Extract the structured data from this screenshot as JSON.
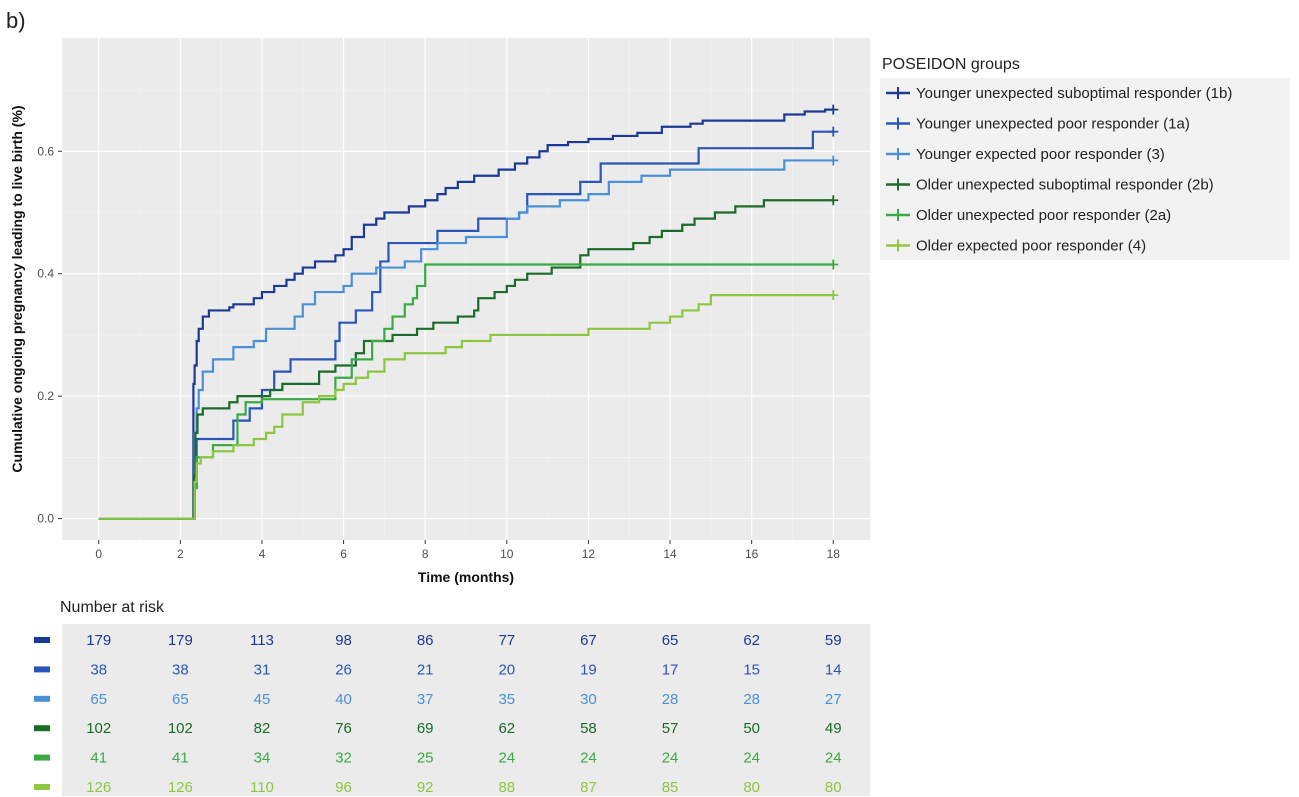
{
  "panel_label": "b)",
  "chart_data": {
    "type": "line",
    "title": "",
    "xlabel": "Time (months)",
    "ylabel": "Cumulative ongoing pregnancy leading to live birth (%)",
    "xlim": [
      -0.9,
      18.9
    ],
    "ylim": [
      -0.035,
      0.785
    ],
    "x_ticks": [
      0,
      2,
      4,
      6,
      8,
      10,
      12,
      14,
      16,
      18
    ],
    "y_ticks": [
      0.0,
      0.2,
      0.4,
      0.6
    ],
    "y_tick_labels": [
      "0.0",
      "0.2",
      "0.4",
      "0.6"
    ],
    "grid": true,
    "legend_title": "POSEIDON groups",
    "legend_position": "right",
    "series": [
      {
        "name": "Younger unexpected suboptimal responder (1b)",
        "color": "#1c3a94",
        "points": [
          [
            0,
            0
          ],
          [
            2.3,
            0
          ],
          [
            2.32,
            0.22
          ],
          [
            2.35,
            0.25
          ],
          [
            2.4,
            0.29
          ],
          [
            2.45,
            0.31
          ],
          [
            2.55,
            0.33
          ],
          [
            2.7,
            0.34
          ],
          [
            3.2,
            0.345
          ],
          [
            3.3,
            0.35
          ],
          [
            3.8,
            0.36
          ],
          [
            4,
            0.37
          ],
          [
            4.3,
            0.38
          ],
          [
            4.6,
            0.39
          ],
          [
            4.8,
            0.4
          ],
          [
            5.0,
            0.41
          ],
          [
            5.3,
            0.42
          ],
          [
            5.8,
            0.43
          ],
          [
            6.0,
            0.44
          ],
          [
            6.2,
            0.46
          ],
          [
            6.5,
            0.48
          ],
          [
            6.8,
            0.49
          ],
          [
            7.0,
            0.5
          ],
          [
            7.6,
            0.51
          ],
          [
            8.0,
            0.52
          ],
          [
            8.3,
            0.53
          ],
          [
            8.5,
            0.54
          ],
          [
            8.8,
            0.55
          ],
          [
            9.2,
            0.56
          ],
          [
            9.8,
            0.57
          ],
          [
            10.2,
            0.58
          ],
          [
            10.5,
            0.59
          ],
          [
            10.8,
            0.6
          ],
          [
            11.0,
            0.61
          ],
          [
            11.5,
            0.615
          ],
          [
            12.0,
            0.62
          ],
          [
            12.6,
            0.625
          ],
          [
            13.2,
            0.63
          ],
          [
            13.8,
            0.64
          ],
          [
            14.5,
            0.645
          ],
          [
            14.8,
            0.65
          ],
          [
            16.8,
            0.66
          ],
          [
            17.3,
            0.665
          ],
          [
            17.8,
            0.668
          ],
          [
            18,
            0.668
          ]
        ]
      },
      {
        "name": "Younger unexpected poor responder (1a)",
        "color": "#2a56b8",
        "points": [
          [
            0,
            0
          ],
          [
            2.3,
            0
          ],
          [
            2.35,
            0.05
          ],
          [
            2.4,
            0.13
          ],
          [
            3.3,
            0.16
          ],
          [
            3.7,
            0.18
          ],
          [
            4.0,
            0.21
          ],
          [
            4.3,
            0.24
          ],
          [
            4.7,
            0.26
          ],
          [
            5.8,
            0.29
          ],
          [
            5.9,
            0.32
          ],
          [
            6.3,
            0.34
          ],
          [
            6.7,
            0.37
          ],
          [
            6.9,
            0.42
          ],
          [
            7.1,
            0.45
          ],
          [
            8.3,
            0.47
          ],
          [
            8.9,
            0.47
          ],
          [
            9.3,
            0.49
          ],
          [
            10.3,
            0.5
          ],
          [
            10.5,
            0.53
          ],
          [
            11.8,
            0.55
          ],
          [
            12.3,
            0.58
          ],
          [
            14.7,
            0.605
          ],
          [
            15.5,
            0.605
          ],
          [
            17.5,
            0.632
          ],
          [
            18,
            0.632
          ]
        ]
      },
      {
        "name": "Younger expected poor responder (3)",
        "color": "#4a90d6",
        "points": [
          [
            0,
            0
          ],
          [
            2.3,
            0
          ],
          [
            2.35,
            0.14
          ],
          [
            2.4,
            0.18
          ],
          [
            2.45,
            0.21
          ],
          [
            2.55,
            0.24
          ],
          [
            2.8,
            0.26
          ],
          [
            3.3,
            0.28
          ],
          [
            3.8,
            0.29
          ],
          [
            4.1,
            0.31
          ],
          [
            4.8,
            0.33
          ],
          [
            5.0,
            0.35
          ],
          [
            5.3,
            0.37
          ],
          [
            6.0,
            0.38
          ],
          [
            6.2,
            0.4
          ],
          [
            6.8,
            0.41
          ],
          [
            7.5,
            0.42
          ],
          [
            7.9,
            0.44
          ],
          [
            8.3,
            0.45
          ],
          [
            9.0,
            0.46
          ],
          [
            10.0,
            0.49
          ],
          [
            10.3,
            0.5
          ],
          [
            10.5,
            0.51
          ],
          [
            11.3,
            0.52
          ],
          [
            12.0,
            0.53
          ],
          [
            12.5,
            0.55
          ],
          [
            13.3,
            0.56
          ],
          [
            14.0,
            0.57
          ],
          [
            16.8,
            0.585
          ],
          [
            18,
            0.585
          ]
        ]
      },
      {
        "name": "Older unexpected suboptimal responder (2b)",
        "color": "#1b6b2a",
        "points": [
          [
            0,
            0
          ],
          [
            2.3,
            0
          ],
          [
            2.33,
            0.07
          ],
          [
            2.37,
            0.14
          ],
          [
            2.42,
            0.17
          ],
          [
            2.55,
            0.18
          ],
          [
            3.2,
            0.19
          ],
          [
            3.4,
            0.2
          ],
          [
            4.2,
            0.21
          ],
          [
            4.5,
            0.22
          ],
          [
            5.4,
            0.24
          ],
          [
            5.8,
            0.25
          ],
          [
            6.3,
            0.27
          ],
          [
            6.5,
            0.29
          ],
          [
            7.2,
            0.3
          ],
          [
            7.8,
            0.31
          ],
          [
            8.2,
            0.32
          ],
          [
            8.8,
            0.33
          ],
          [
            9.2,
            0.34
          ],
          [
            9.3,
            0.36
          ],
          [
            9.7,
            0.37
          ],
          [
            10.0,
            0.38
          ],
          [
            10.2,
            0.39
          ],
          [
            10.5,
            0.4
          ],
          [
            11.1,
            0.41
          ],
          [
            11.8,
            0.43
          ],
          [
            12.0,
            0.44
          ],
          [
            13.1,
            0.45
          ],
          [
            13.5,
            0.46
          ],
          [
            13.8,
            0.47
          ],
          [
            14.3,
            0.48
          ],
          [
            14.6,
            0.49
          ],
          [
            15.1,
            0.5
          ],
          [
            15.6,
            0.51
          ],
          [
            16.3,
            0.52
          ],
          [
            18,
            0.52
          ]
        ]
      },
      {
        "name": "Older unexpected poor responder (2a)",
        "color": "#3aaa45",
        "points": [
          [
            0,
            0
          ],
          [
            2.3,
            0
          ],
          [
            2.35,
            0.05
          ],
          [
            2.4,
            0.1
          ],
          [
            2.8,
            0.12
          ],
          [
            3.4,
            0.17
          ],
          [
            3.6,
            0.19
          ],
          [
            4.0,
            0.195
          ],
          [
            5.8,
            0.23
          ],
          [
            6.2,
            0.26
          ],
          [
            6.7,
            0.29
          ],
          [
            7.0,
            0.31
          ],
          [
            7.2,
            0.33
          ],
          [
            7.5,
            0.35
          ],
          [
            7.7,
            0.36
          ],
          [
            7.8,
            0.38
          ],
          [
            8.0,
            0.415
          ],
          [
            18,
            0.415
          ]
        ]
      },
      {
        "name": "Older expected poor responder (4)",
        "color": "#8dc63f",
        "points": [
          [
            0,
            0
          ],
          [
            2.3,
            0
          ],
          [
            2.35,
            0.06
          ],
          [
            2.4,
            0.09
          ],
          [
            2.5,
            0.1
          ],
          [
            2.8,
            0.11
          ],
          [
            3.3,
            0.12
          ],
          [
            3.8,
            0.13
          ],
          [
            4.1,
            0.14
          ],
          [
            4.3,
            0.15
          ],
          [
            4.5,
            0.17
          ],
          [
            5.0,
            0.19
          ],
          [
            5.4,
            0.2
          ],
          [
            5.8,
            0.21
          ],
          [
            6.0,
            0.22
          ],
          [
            6.3,
            0.23
          ],
          [
            6.6,
            0.24
          ],
          [
            7.0,
            0.26
          ],
          [
            7.5,
            0.27
          ],
          [
            8.5,
            0.28
          ],
          [
            8.9,
            0.29
          ],
          [
            9.6,
            0.3
          ],
          [
            10.5,
            0.3
          ],
          [
            12.0,
            0.31
          ],
          [
            13.5,
            0.32
          ],
          [
            14.0,
            0.33
          ],
          [
            14.3,
            0.34
          ],
          [
            14.7,
            0.35
          ],
          [
            15.0,
            0.365
          ],
          [
            18,
            0.365
          ]
        ]
      }
    ]
  },
  "risk_table": {
    "title": "Number at risk",
    "rows": [
      {
        "color": "#1c3a94",
        "values": [
          179,
          179,
          113,
          98,
          86,
          77,
          67,
          65,
          62,
          59
        ]
      },
      {
        "color": "#2a56b8",
        "values": [
          38,
          38,
          31,
          26,
          21,
          20,
          19,
          17,
          15,
          14
        ]
      },
      {
        "color": "#4a90d6",
        "values": [
          65,
          65,
          45,
          40,
          37,
          35,
          30,
          28,
          28,
          27
        ]
      },
      {
        "color": "#1b6b2a",
        "values": [
          102,
          102,
          82,
          76,
          69,
          62,
          58,
          57,
          50,
          49
        ]
      },
      {
        "color": "#3aaa45",
        "values": [
          41,
          41,
          34,
          32,
          25,
          24,
          24,
          24,
          24,
          24
        ]
      },
      {
        "color": "#8dc63f",
        "values": [
          126,
          126,
          110,
          96,
          92,
          88,
          87,
          85,
          80,
          80
        ]
      }
    ]
  }
}
